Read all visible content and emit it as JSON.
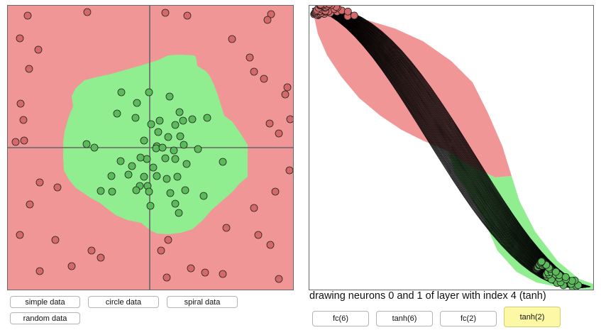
{
  "colors": {
    "red_region": "#f09696",
    "green_region": "#90ee90",
    "red_point": "#d56969",
    "green_point": "#5bbb5b",
    "axis": "#666666",
    "active_button": "#fdf8a6"
  },
  "data_buttons": [
    {
      "label": "simple data"
    },
    {
      "label": "circle data"
    },
    {
      "label": "spiral data"
    },
    {
      "label": "random data"
    }
  ],
  "caption": "drawing neurons 0 and 1 of layer with index 4 (tanh)",
  "layer_buttons": [
    {
      "label": "fc(6)",
      "active": false
    },
    {
      "label": "tanh(6)",
      "active": false
    },
    {
      "label": "fc(2)",
      "active": false
    },
    {
      "label": "tanh(2)",
      "active": true
    }
  ],
  "dataset": "circle data",
  "points": {
    "red": [
      [
        28,
        14
      ],
      [
        112,
        9
      ],
      [
        222,
        10
      ],
      [
        371,
        12
      ],
      [
        366,
        20
      ],
      [
        253,
        14
      ],
      [
        17,
        46
      ],
      [
        43,
        62
      ],
      [
        316,
        47
      ],
      [
        341,
        73
      ],
      [
        30,
        89
      ],
      [
        347,
        93
      ],
      [
        361,
        103
      ],
      [
        394,
        115
      ],
      [
        391,
        125
      ],
      [
        18,
        138
      ],
      [
        398,
        160
      ],
      [
        369,
        166
      ],
      [
        22,
        161
      ],
      [
        23,
        190
      ],
      [
        11,
        192
      ],
      [
        382,
        180
      ],
      [
        397,
        232
      ],
      [
        45,
        249
      ],
      [
        70,
        256
      ],
      [
        377,
        262
      ],
      [
        31,
        280
      ],
      [
        347,
        285
      ],
      [
        308,
        313
      ],
      [
        17,
        323
      ],
      [
        353,
        323
      ],
      [
        370,
        337
      ],
      [
        67,
        330
      ],
      [
        118,
        345
      ],
      [
        131,
        355
      ],
      [
        226,
        330
      ],
      [
        90,
        367
      ],
      [
        45,
        374
      ],
      [
        258,
        370
      ],
      [
        278,
        376
      ],
      [
        303,
        378
      ],
      [
        382,
        385
      ],
      [
        224,
        383
      ],
      [
        216,
        345
      ]
    ],
    "green": [
      [
        160,
        122
      ],
      [
        182,
        137
      ],
      [
        199,
        122
      ],
      [
        228,
        128
      ],
      [
        242,
        150
      ],
      [
        154,
        152
      ],
      [
        180,
        158
      ],
      [
        202,
        167
      ],
      [
        214,
        162
      ],
      [
        247,
        162
      ],
      [
        260,
        160
      ],
      [
        281,
        158
      ],
      [
        236,
        168
      ],
      [
        212,
        178
      ],
      [
        226,
        185
      ],
      [
        243,
        184
      ],
      [
        111,
        195
      ],
      [
        122,
        200
      ],
      [
        192,
        190
      ],
      [
        210,
        198
      ],
      [
        209,
        201
      ],
      [
        218,
        200
      ],
      [
        234,
        204
      ],
      [
        248,
        196
      ],
      [
        268,
        202
      ],
      [
        196,
        216
      ],
      [
        159,
        219
      ],
      [
        187,
        214
      ],
      [
        222,
        215
      ],
      [
        236,
        216
      ],
      [
        303,
        220
      ],
      [
        252,
        223
      ],
      [
        175,
        226
      ],
      [
        205,
        228
      ],
      [
        170,
        238
      ],
      [
        146,
        240
      ],
      [
        192,
        241
      ],
      [
        210,
        240
      ],
      [
        224,
        244
      ],
      [
        239,
        241
      ],
      [
        186,
        254
      ],
      [
        197,
        254
      ],
      [
        131,
        261
      ],
      [
        147,
        262
      ],
      [
        181,
        260
      ],
      [
        199,
        262
      ],
      [
        229,
        264
      ],
      [
        250,
        260
      ],
      [
        276,
        268
      ],
      [
        236,
        279
      ],
      [
        201,
        282
      ],
      [
        241,
        292
      ]
    ]
  }
}
